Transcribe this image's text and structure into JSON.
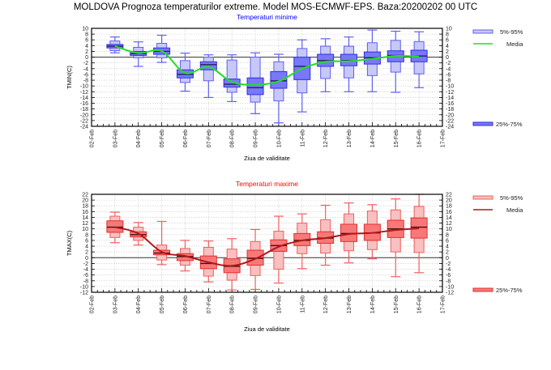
{
  "title": "MOLDOVA  Prognoza temperaturilor extreme.  Model MOS-ECMWF-EPS. Baza:20200202 00 UTC",
  "chart_data": [
    {
      "id": "tmin",
      "type": "boxplot",
      "title": "Temperaturi minime",
      "title_color": "#0000ff",
      "xlabel": "Ziua de validitate",
      "ylabel": "TMIN(C)",
      "ylim": [
        -24,
        10
      ],
      "ytick_step": 2,
      "grid": true,
      "x_ticks": [
        "02-Feb",
        "03-Feb",
        "04-Feb",
        "05-Feb",
        "06-Feb",
        "07-Feb",
        "08-Feb",
        "09-Feb",
        "10-Feb",
        "11-Feb",
        "12-Feb",
        "13-Feb",
        "14-Feb",
        "15-Feb",
        "16-Feb",
        "17-Feb"
      ],
      "colors": {
        "outer_fill": "#c8c8f8",
        "outer_stroke": "#6060f0",
        "inner_fill": "#7878f8",
        "inner_stroke": "#3030e0",
        "median": "#202060",
        "mean_line": "#20e020"
      },
      "legend": {
        "outer": "5%-95%",
        "mean": "Media",
        "inner": "25%-75%",
        "placement": "right"
      },
      "boxes": [
        {
          "day": "03-Feb",
          "min": 1.5,
          "p5": 2.3,
          "p25": 3.2,
          "median": 3.8,
          "p75": 4.4,
          "p95": 5.6,
          "max": 7.0,
          "mean": 3.8
        },
        {
          "day": "04-Feb",
          "min": -3.2,
          "p5": -0.2,
          "p25": 0.6,
          "median": 1.2,
          "p75": 2.0,
          "p95": 3.4,
          "max": 5.3,
          "mean": 1.4
        },
        {
          "day": "05-Feb",
          "min": -1.8,
          "p5": -0.2,
          "p25": 1.0,
          "median": 2.0,
          "p75": 3.2,
          "p95": 4.8,
          "max": 7.6,
          "mean": 2.1
        },
        {
          "day": "06-Feb",
          "min": -11.8,
          "p5": -8.8,
          "p25": -7.2,
          "median": -6.0,
          "p75": -4.4,
          "p95": -1.2,
          "max": 1.4,
          "mean": -5.5
        },
        {
          "day": "07-Feb",
          "min": -14.0,
          "p5": -8.2,
          "p25": -4.4,
          "median": -2.6,
          "p75": -1.6,
          "p95": 0.0,
          "max": 0.8,
          "mean": -3.4
        },
        {
          "day": "08-Feb",
          "min": -15.4,
          "p5": -12.2,
          "p25": -10.4,
          "median": -9.4,
          "p75": -7.6,
          "p95": -1.0,
          "max": 0.8,
          "mean": -8.6
        },
        {
          "day": "09-Feb",
          "min": -19.6,
          "p5": -15.6,
          "p25": -13.0,
          "median": -10.6,
          "p75": -7.2,
          "p95": 0.0,
          "max": 1.5,
          "mean": -9.6
        },
        {
          "day": "10-Feb",
          "min": -22.8,
          "p5": -15.2,
          "p25": -10.8,
          "median": -8.2,
          "p75": -5.0,
          "p95": -1.6,
          "max": 1.0,
          "mean": -8.4
        },
        {
          "day": "11-Feb",
          "min": -19.0,
          "p5": -12.4,
          "p25": -7.8,
          "median": -3.2,
          "p75": 0.0,
          "p95": 3.0,
          "max": 6.0,
          "mean": -4.0
        },
        {
          "day": "12-Feb",
          "min": -12.0,
          "p5": -7.4,
          "p25": -3.2,
          "median": -1.2,
          "p75": 1.0,
          "p95": 3.8,
          "max": 6.4,
          "mean": -1.6
        },
        {
          "day": "13-Feb",
          "min": -12.0,
          "p5": -7.2,
          "p25": -3.0,
          "median": -1.2,
          "p75": 1.0,
          "p95": 3.8,
          "max": 7.0,
          "mean": -1.4
        },
        {
          "day": "14-Feb",
          "min": -12.0,
          "p5": -6.4,
          "p25": -2.4,
          "median": -0.2,
          "p75": 1.8,
          "p95": 5.0,
          "max": 9.4,
          "mean": -0.6
        },
        {
          "day": "15-Feb",
          "min": -12.2,
          "p5": -5.2,
          "p25": -1.6,
          "median": 0.6,
          "p75": 2.2,
          "p95": 5.8,
          "max": 9.0,
          "mean": 0.4
        },
        {
          "day": "16-Feb",
          "min": -10.6,
          "p5": -5.8,
          "p25": -1.6,
          "median": 0.4,
          "p75": 2.4,
          "p95": 5.4,
          "max": 8.8,
          "mean": 0.2
        }
      ]
    },
    {
      "id": "tmax",
      "type": "boxplot",
      "title": "Temperaturi maxime",
      "title_color": "#ff0000",
      "xlabel": "Ziua de validitate",
      "ylabel": "TMAX(C)",
      "ylim": [
        -12,
        22
      ],
      "ytick_step": 2,
      "grid": true,
      "x_ticks": [
        "02-Feb",
        "03-Feb",
        "04-Feb",
        "05-Feb",
        "06-Feb",
        "07-Feb",
        "08-Feb",
        "09-Feb",
        "10-Feb",
        "11-Feb",
        "12-Feb",
        "13-Feb",
        "14-Feb",
        "15-Feb",
        "16-Feb",
        "17-Feb"
      ],
      "colors": {
        "outer_fill": "#f8c0c0",
        "outer_stroke": "#f06060",
        "inner_fill": "#f87878",
        "inner_stroke": "#e03030",
        "median": "#401010",
        "mean_line": "#b01818"
      },
      "legend": {
        "outer": "5%-95%",
        "mean": "Media",
        "inner": "25%-75%",
        "placement": "right"
      },
      "boxes": [
        {
          "day": "03-Feb",
          "min": 5.2,
          "p5": 7.0,
          "p25": 8.8,
          "median": 10.6,
          "p75": 12.8,
          "p95": 14.4,
          "max": 15.8,
          "mean": 10.6
        },
        {
          "day": "04-Feb",
          "min": 4.4,
          "p5": 6.0,
          "p25": 7.2,
          "median": 8.0,
          "p75": 9.0,
          "p95": 10.6,
          "max": 12.2,
          "mean": 8.4
        },
        {
          "day": "05-Feb",
          "min": -2.4,
          "p5": -0.8,
          "p25": 1.0,
          "median": 1.6,
          "p75": 2.6,
          "p95": 4.4,
          "max": 12.6,
          "mean": 2.0
        },
        {
          "day": "06-Feb",
          "min": -4.6,
          "p5": -2.6,
          "p25": -1.0,
          "median": 0.4,
          "p75": 1.4,
          "p95": 3.2,
          "max": 6.0,
          "mean": 0.6
        },
        {
          "day": "07-Feb",
          "min": -8.4,
          "p5": -6.4,
          "p25": -3.8,
          "median": -2.0,
          "p75": 0.6,
          "p95": 3.6,
          "max": 5.8,
          "mean": -1.6
        },
        {
          "day": "08-Feb",
          "min": -11.2,
          "p5": -7.8,
          "p25": -5.2,
          "median": -3.0,
          "p75": -0.4,
          "p95": 3.0,
          "max": 6.6,
          "mean": -2.8
        },
        {
          "day": "09-Feb",
          "min": -11.0,
          "p5": -6.2,
          "p25": -2.6,
          "median": -0.2,
          "p75": 2.6,
          "p95": 5.6,
          "max": 9.8,
          "mean": -0.4
        },
        {
          "day": "10-Feb",
          "min": -8.8,
          "p5": -4.0,
          "p25": 2.2,
          "median": 4.2,
          "p75": 6.2,
          "p95": 9.2,
          "max": 14.4,
          "mean": 3.8
        },
        {
          "day": "11-Feb",
          "min": -3.8,
          "p5": 1.4,
          "p25": 4.2,
          "median": 6.0,
          "p75": 8.4,
          "p95": 12.0,
          "max": 15.2,
          "mean": 6.0
        },
        {
          "day": "12-Feb",
          "min": -2.6,
          "p5": 1.6,
          "p25": 5.0,
          "median": 6.8,
          "p75": 9.0,
          "p95": 13.2,
          "max": 18.2,
          "mean": 6.8
        },
        {
          "day": "13-Feb",
          "min": -1.8,
          "p5": 2.4,
          "p25": 5.6,
          "median": 8.4,
          "p75": 11.6,
          "p95": 15.2,
          "max": 19.0,
          "mean": 8.2
        },
        {
          "day": "14-Feb",
          "min": -0.4,
          "p5": 2.8,
          "p25": 6.0,
          "median": 8.6,
          "p75": 11.6,
          "p95": 16.2,
          "max": 18.4,
          "mean": 8.6
        },
        {
          "day": "15-Feb",
          "min": -6.6,
          "p5": 2.0,
          "p25": 7.0,
          "median": 10.0,
          "p75": 13.0,
          "p95": 16.6,
          "max": 20.4,
          "mean": 9.6
        },
        {
          "day": "16-Feb",
          "min": -5.2,
          "p5": 1.8,
          "p25": 6.8,
          "median": 10.6,
          "p75": 13.8,
          "p95": 17.8,
          "max": 22.0,
          "mean": 10.2
        }
      ]
    }
  ]
}
